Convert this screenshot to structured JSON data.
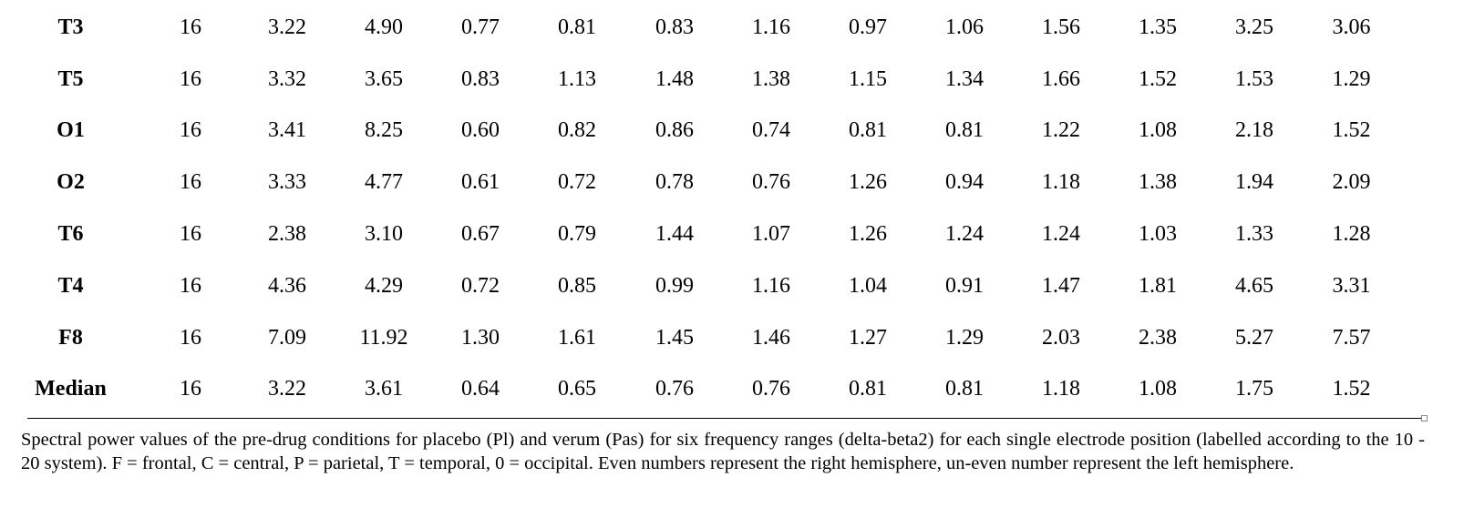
{
  "table": {
    "rows": [
      {
        "label": "T3",
        "values": [
          "16",
          "3.22",
          "4.90",
          "0.77",
          "0.81",
          "0.83",
          "1.16",
          "0.97",
          "1.06",
          "1.56",
          "1.35",
          "3.25",
          "3.06"
        ]
      },
      {
        "label": "T5",
        "values": [
          "16",
          "3.32",
          "3.65",
          "0.83",
          "1.13",
          "1.48",
          "1.38",
          "1.15",
          "1.34",
          "1.66",
          "1.52",
          "1.53",
          "1.29"
        ]
      },
      {
        "label": "O1",
        "values": [
          "16",
          "3.41",
          "8.25",
          "0.60",
          "0.82",
          "0.86",
          "0.74",
          "0.81",
          "0.81",
          "1.22",
          "1.08",
          "2.18",
          "1.52"
        ]
      },
      {
        "label": "O2",
        "values": [
          "16",
          "3.33",
          "4.77",
          "0.61",
          "0.72",
          "0.78",
          "0.76",
          "1.26",
          "0.94",
          "1.18",
          "1.38",
          "1.94",
          "2.09"
        ]
      },
      {
        "label": "T6",
        "values": [
          "16",
          "2.38",
          "3.10",
          "0.67",
          "0.79",
          "1.44",
          "1.07",
          "1.26",
          "1.24",
          "1.24",
          "1.03",
          "1.33",
          "1.28"
        ]
      },
      {
        "label": "T4",
        "values": [
          "16",
          "4.36",
          "4.29",
          "0.72",
          "0.85",
          "0.99",
          "1.16",
          "1.04",
          "0.91",
          "1.47",
          "1.81",
          "4.65",
          "3.31"
        ]
      },
      {
        "label": "F8",
        "values": [
          "16",
          "7.09",
          "11.92",
          "1.30",
          "1.61",
          "1.45",
          "1.46",
          "1.27",
          "1.29",
          "2.03",
          "2.38",
          "5.27",
          "7.57"
        ]
      },
      {
        "label": "Median",
        "values": [
          "16",
          "3.22",
          "3.61",
          "0.64",
          "0.65",
          "0.76",
          "0.76",
          "0.81",
          "0.81",
          "1.18",
          "1.08",
          "1.75",
          "1.52"
        ]
      }
    ]
  },
  "caption": "Spectral power values of the pre-drug conditions for placebo (Pl) and verum (Pas) for six frequency ranges (delta-beta2) for each single electrode position (labelled according to the 10 - 20 system). F = frontal, C = central, P = parietal, T = temporal, 0 = occipital. Even numbers represent the right hemisphere, un-even number represent the left hemisphere."
}
